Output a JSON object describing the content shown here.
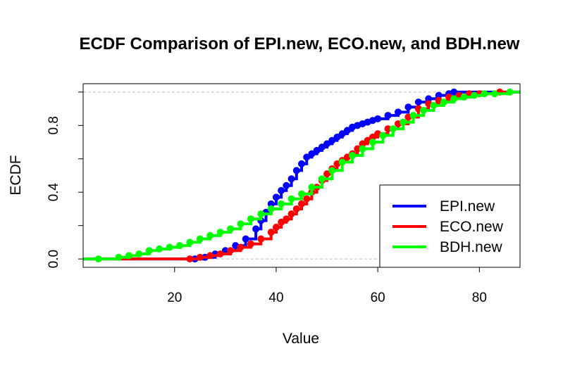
{
  "chart_data": {
    "type": "line",
    "title": "ECDF Comparison of EPI.new, ECO.new, and BDH.new",
    "xlabel": "Value",
    "ylabel": "ECDF",
    "xlim": [
      2,
      88
    ],
    "ylim": [
      -0.05,
      1.05
    ],
    "x_ticks": [
      20,
      40,
      60,
      80
    ],
    "x_tick_labels": [
      "20",
      "40",
      "60",
      "80"
    ],
    "y_ticks": [
      0.0,
      0.2,
      0.4,
      0.6,
      0.8,
      1.0
    ],
    "y_tick_labels": [
      "0.0",
      "",
      "0.4",
      "",
      "0.8",
      ""
    ],
    "reference_lines_y": [
      0,
      1
    ],
    "legend_position": "bottom-right",
    "series": [
      {
        "name": "EPI.new",
        "color": "#0000FF",
        "points": [
          [
            24,
            0.0
          ],
          [
            26,
            0.01
          ],
          [
            28,
            0.03
          ],
          [
            30,
            0.05
          ],
          [
            32,
            0.08
          ],
          [
            34,
            0.12
          ],
          [
            36,
            0.18
          ],
          [
            37,
            0.23
          ],
          [
            38,
            0.28
          ],
          [
            39,
            0.33
          ],
          [
            40,
            0.37
          ],
          [
            41,
            0.41
          ],
          [
            42,
            0.44
          ],
          [
            43,
            0.48
          ],
          [
            44,
            0.53
          ],
          [
            45,
            0.57
          ],
          [
            46,
            0.61
          ],
          [
            47,
            0.63
          ],
          [
            48,
            0.65
          ],
          [
            49,
            0.67
          ],
          [
            50,
            0.69
          ],
          [
            51,
            0.71
          ],
          [
            52,
            0.73
          ],
          [
            53,
            0.75
          ],
          [
            54,
            0.77
          ],
          [
            55,
            0.79
          ],
          [
            56,
            0.8
          ],
          [
            57,
            0.81
          ],
          [
            58,
            0.82
          ],
          [
            59,
            0.83
          ],
          [
            60,
            0.84
          ],
          [
            62,
            0.86
          ],
          [
            64,
            0.88
          ],
          [
            66,
            0.91
          ],
          [
            68,
            0.94
          ],
          [
            70,
            0.96
          ],
          [
            72,
            0.98
          ],
          [
            74,
            0.99
          ],
          [
            75,
            1.0
          ]
        ]
      },
      {
        "name": "ECO.new",
        "color": "#FF0000",
        "points": [
          [
            23,
            0.0
          ],
          [
            25,
            0.01
          ],
          [
            27,
            0.02
          ],
          [
            29,
            0.03
          ],
          [
            31,
            0.05
          ],
          [
            33,
            0.07
          ],
          [
            35,
            0.09
          ],
          [
            37,
            0.12
          ],
          [
            39,
            0.16
          ],
          [
            40,
            0.19
          ],
          [
            41,
            0.22
          ],
          [
            42,
            0.24
          ],
          [
            43,
            0.27
          ],
          [
            44,
            0.3
          ],
          [
            45,
            0.33
          ],
          [
            46,
            0.36
          ],
          [
            47,
            0.4
          ],
          [
            48,
            0.43
          ],
          [
            49,
            0.47
          ],
          [
            50,
            0.51
          ],
          [
            51,
            0.54
          ],
          [
            52,
            0.57
          ],
          [
            53,
            0.59
          ],
          [
            54,
            0.61
          ],
          [
            55,
            0.63
          ],
          [
            56,
            0.66
          ],
          [
            57,
            0.69
          ],
          [
            58,
            0.71
          ],
          [
            59,
            0.73
          ],
          [
            60,
            0.75
          ],
          [
            62,
            0.78
          ],
          [
            64,
            0.81
          ],
          [
            66,
            0.85
          ],
          [
            68,
            0.9
          ],
          [
            70,
            0.93
          ],
          [
            72,
            0.95
          ],
          [
            74,
            0.97
          ],
          [
            76,
            0.98
          ],
          [
            78,
            0.99
          ],
          [
            80,
            0.99
          ],
          [
            84,
            1.0
          ]
        ]
      },
      {
        "name": "BDH.new",
        "color": "#00FF00",
        "points": [
          [
            5,
            0.0
          ],
          [
            9,
            0.01
          ],
          [
            11,
            0.02
          ],
          [
            13,
            0.03
          ],
          [
            15,
            0.05
          ],
          [
            17,
            0.06
          ],
          [
            19,
            0.07
          ],
          [
            21,
            0.08
          ],
          [
            23,
            0.1
          ],
          [
            25,
            0.12
          ],
          [
            27,
            0.14
          ],
          [
            29,
            0.16
          ],
          [
            31,
            0.18
          ],
          [
            33,
            0.21
          ],
          [
            35,
            0.24
          ],
          [
            37,
            0.27
          ],
          [
            39,
            0.3
          ],
          [
            41,
            0.33
          ],
          [
            43,
            0.36
          ],
          [
            45,
            0.39
          ],
          [
            47,
            0.43
          ],
          [
            49,
            0.48
          ],
          [
            51,
            0.53
          ],
          [
            53,
            0.58
          ],
          [
            55,
            0.62
          ],
          [
            57,
            0.66
          ],
          [
            59,
            0.7
          ],
          [
            61,
            0.74
          ],
          [
            63,
            0.78
          ],
          [
            65,
            0.82
          ],
          [
            67,
            0.86
          ],
          [
            69,
            0.89
          ],
          [
            71,
            0.92
          ],
          [
            73,
            0.94
          ],
          [
            75,
            0.96
          ],
          [
            77,
            0.97
          ],
          [
            79,
            0.98
          ],
          [
            81,
            0.99
          ],
          [
            83,
            0.99
          ],
          [
            86,
            1.0
          ]
        ]
      }
    ]
  }
}
